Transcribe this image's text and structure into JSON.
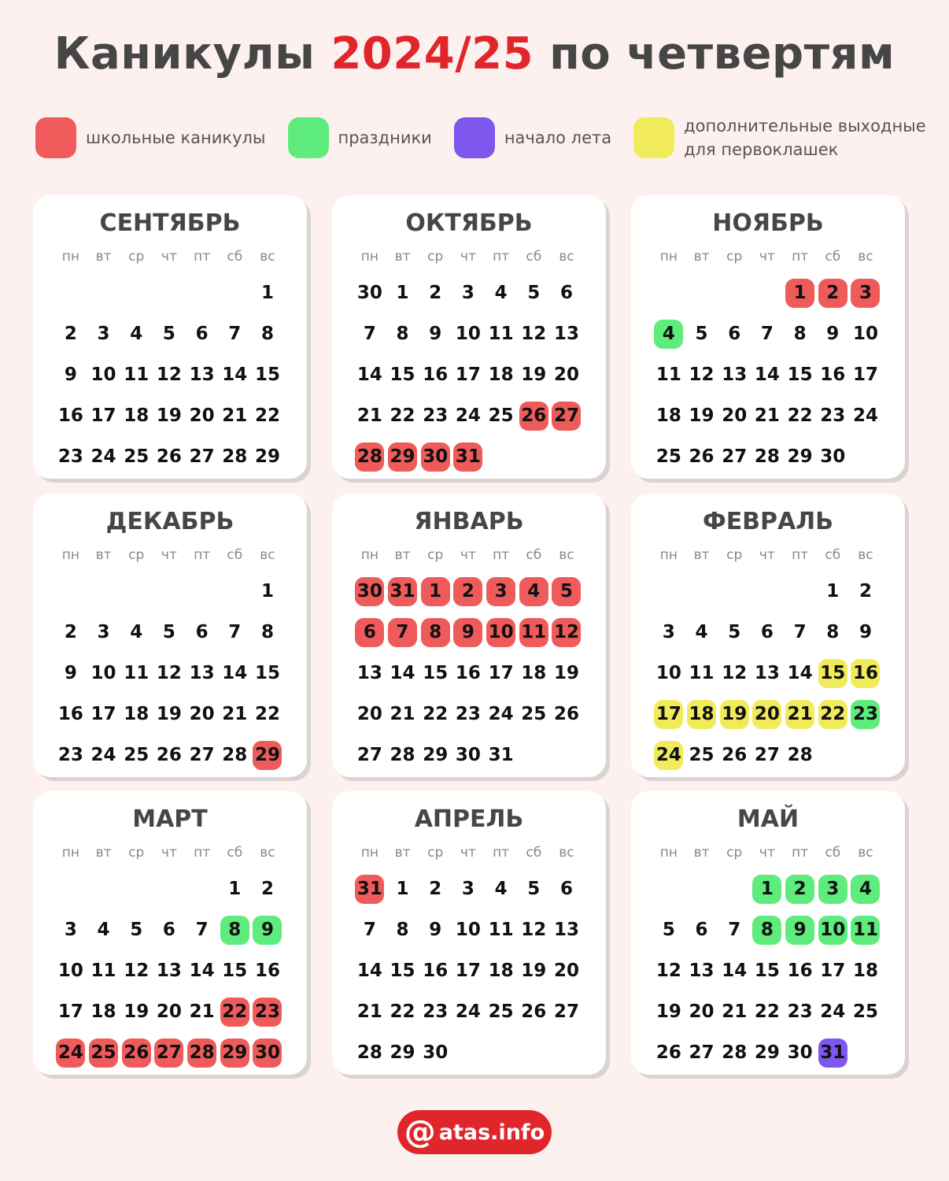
{
  "title": {
    "prefix": "Каникулы ",
    "year": "2024/25",
    "suffix": " по четвертям"
  },
  "colors": {
    "vacation": "#ef5b5b",
    "holiday": "#5eec7c",
    "summer": "#7e57ee",
    "extra": "#f1eb5b"
  },
  "legend": [
    {
      "type": "vacation",
      "label": "школьные каникулы"
    },
    {
      "type": "holiday",
      "label": "праздники"
    },
    {
      "type": "summer",
      "label": "начало лета"
    },
    {
      "type": "extra",
      "label": "дополнительные выходные\nдля первоклашек"
    }
  ],
  "weekdays": [
    "пн",
    "вт",
    "ср",
    "чт",
    "пт",
    "сб",
    "вс"
  ],
  "months": [
    {
      "name": "СЕНТЯБРЬ",
      "weeks": [
        [
          "",
          "",
          "",
          "",
          "",
          "",
          "1"
        ],
        [
          "2",
          "3",
          "4",
          "5",
          "6",
          "7",
          "8"
        ],
        [
          "9",
          "10",
          "11",
          "12",
          "13",
          "14",
          "15"
        ],
        [
          "16",
          "17",
          "18",
          "19",
          "20",
          "21",
          "22"
        ],
        [
          "23",
          "24",
          "25",
          "26",
          "27",
          "28",
          "29"
        ]
      ]
    },
    {
      "name": "ОКТЯБРЬ",
      "weeks": [
        [
          "30",
          "1",
          "2",
          "3",
          "4",
          "5",
          "6"
        ],
        [
          "7",
          "8",
          "9",
          "10",
          "11",
          "12",
          "13"
        ],
        [
          "14",
          "15",
          "16",
          "17",
          "18",
          "19",
          "20"
        ],
        [
          "21",
          "22",
          "23",
          "24",
          "25",
          {
            "d": "26",
            "t": "vacation"
          },
          {
            "d": "27",
            "t": "vacation"
          }
        ],
        [
          {
            "d": "28",
            "t": "vacation"
          },
          {
            "d": "29",
            "t": "vacation"
          },
          {
            "d": "30",
            "t": "vacation"
          },
          {
            "d": "31",
            "t": "vacation"
          },
          "",
          "",
          ""
        ]
      ]
    },
    {
      "name": "НОЯБРЬ",
      "weeks": [
        [
          "",
          "",
          "",
          "",
          {
            "d": "1",
            "t": "vacation"
          },
          {
            "d": "2",
            "t": "vacation"
          },
          {
            "d": "3",
            "t": "vacation"
          }
        ],
        [
          {
            "d": "4",
            "t": "holiday"
          },
          "5",
          "6",
          "7",
          "8",
          "9",
          "10"
        ],
        [
          "11",
          "12",
          "13",
          "14",
          "15",
          "16",
          "17"
        ],
        [
          "18",
          "19",
          "20",
          "21",
          "22",
          "23",
          "24"
        ],
        [
          "25",
          "26",
          "27",
          "28",
          "29",
          "30",
          ""
        ]
      ]
    },
    {
      "name": "ДЕКАБРЬ",
      "weeks": [
        [
          "",
          "",
          "",
          "",
          "",
          "",
          "1"
        ],
        [
          "2",
          "3",
          "4",
          "5",
          "6",
          "7",
          "8"
        ],
        [
          "9",
          "10",
          "11",
          "12",
          "13",
          "14",
          "15"
        ],
        [
          "16",
          "17",
          "18",
          "19",
          "20",
          "21",
          "22"
        ],
        [
          "23",
          "24",
          "25",
          "26",
          "27",
          "28",
          {
            "d": "29",
            "t": "vacation"
          }
        ]
      ]
    },
    {
      "name": "ЯНВАРЬ",
      "weeks": [
        [
          {
            "d": "30",
            "t": "vacation"
          },
          {
            "d": "31",
            "t": "vacation"
          },
          {
            "d": "1",
            "t": "vacation"
          },
          {
            "d": "2",
            "t": "vacation"
          },
          {
            "d": "3",
            "t": "vacation"
          },
          {
            "d": "4",
            "t": "vacation"
          },
          {
            "d": "5",
            "t": "vacation"
          }
        ],
        [
          {
            "d": "6",
            "t": "vacation"
          },
          {
            "d": "7",
            "t": "vacation"
          },
          {
            "d": "8",
            "t": "vacation"
          },
          {
            "d": "9",
            "t": "vacation"
          },
          {
            "d": "10",
            "t": "vacation"
          },
          {
            "d": "11",
            "t": "vacation"
          },
          {
            "d": "12",
            "t": "vacation"
          }
        ],
        [
          "13",
          "14",
          "15",
          "16",
          "17",
          "18",
          "19"
        ],
        [
          "20",
          "21",
          "22",
          "23",
          "24",
          "25",
          "26"
        ],
        [
          "27",
          "28",
          "29",
          "30",
          "31",
          "",
          ""
        ]
      ]
    },
    {
      "name": "ФЕВРАЛЬ",
      "weeks": [
        [
          "",
          "",
          "",
          "",
          "",
          "1",
          "2"
        ],
        [
          "3",
          "4",
          "5",
          "6",
          "7",
          "8",
          "9"
        ],
        [
          "10",
          "11",
          "12",
          "13",
          "14",
          {
            "d": "15",
            "t": "extra"
          },
          {
            "d": "16",
            "t": "extra"
          }
        ],
        [
          {
            "d": "17",
            "t": "extra"
          },
          {
            "d": "18",
            "t": "extra"
          },
          {
            "d": "19",
            "t": "extra"
          },
          {
            "d": "20",
            "t": "extra"
          },
          {
            "d": "21",
            "t": "extra"
          },
          {
            "d": "22",
            "t": "extra"
          },
          {
            "d": "23",
            "t": "holiday"
          }
        ],
        [
          {
            "d": "24",
            "t": "extra"
          },
          "25",
          "26",
          "27",
          "28",
          "",
          ""
        ]
      ]
    },
    {
      "name": "МАРТ",
      "weeks": [
        [
          "",
          "",
          "",
          "",
          "",
          "1",
          "2"
        ],
        [
          "3",
          "4",
          "5",
          "6",
          "7",
          {
            "d": "8",
            "t": "holiday"
          },
          {
            "d": "9",
            "t": "holiday"
          }
        ],
        [
          "10",
          "11",
          "12",
          "13",
          "14",
          "15",
          "16"
        ],
        [
          "17",
          "18",
          "19",
          "20",
          "21",
          {
            "d": "22",
            "t": "vacation"
          },
          {
            "d": "23",
            "t": "vacation"
          }
        ],
        [
          {
            "d": "24",
            "t": "vacation"
          },
          {
            "d": "25",
            "t": "vacation"
          },
          {
            "d": "26",
            "t": "vacation"
          },
          {
            "d": "27",
            "t": "vacation"
          },
          {
            "d": "28",
            "t": "vacation"
          },
          {
            "d": "29",
            "t": "vacation"
          },
          {
            "d": "30",
            "t": "vacation"
          }
        ]
      ]
    },
    {
      "name": "АПРЕЛЬ",
      "weeks": [
        [
          {
            "d": "31",
            "t": "vacation"
          },
          "1",
          "2",
          "3",
          "4",
          "5",
          "6"
        ],
        [
          "7",
          "8",
          "9",
          "10",
          "11",
          "12",
          "13"
        ],
        [
          "14",
          "15",
          "16",
          "17",
          "18",
          "19",
          "20"
        ],
        [
          "21",
          "22",
          "23",
          "24",
          "25",
          "26",
          "27"
        ],
        [
          "28",
          "29",
          "30",
          "",
          "",
          "",
          ""
        ]
      ]
    },
    {
      "name": "МАЙ",
      "weeks": [
        [
          "",
          "",
          "",
          {
            "d": "1",
            "t": "holiday"
          },
          {
            "d": "2",
            "t": "holiday"
          },
          {
            "d": "3",
            "t": "holiday"
          },
          {
            "d": "4",
            "t": "holiday"
          }
        ],
        [
          "5",
          "6",
          "7",
          {
            "d": "8",
            "t": "holiday"
          },
          {
            "d": "9",
            "t": "holiday"
          },
          {
            "d": "10",
            "t": "holiday"
          },
          {
            "d": "11",
            "t": "holiday"
          }
        ],
        [
          "12",
          "13",
          "14",
          "15",
          "16",
          "17",
          "18"
        ],
        [
          "19",
          "20",
          "21",
          "22",
          "23",
          "24",
          "25"
        ],
        [
          "26",
          "27",
          "28",
          "29",
          "30",
          {
            "d": "31",
            "t": "summer"
          },
          ""
        ]
      ]
    }
  ],
  "footer": {
    "logo_at": "@",
    "logo_text": "atas.info"
  }
}
